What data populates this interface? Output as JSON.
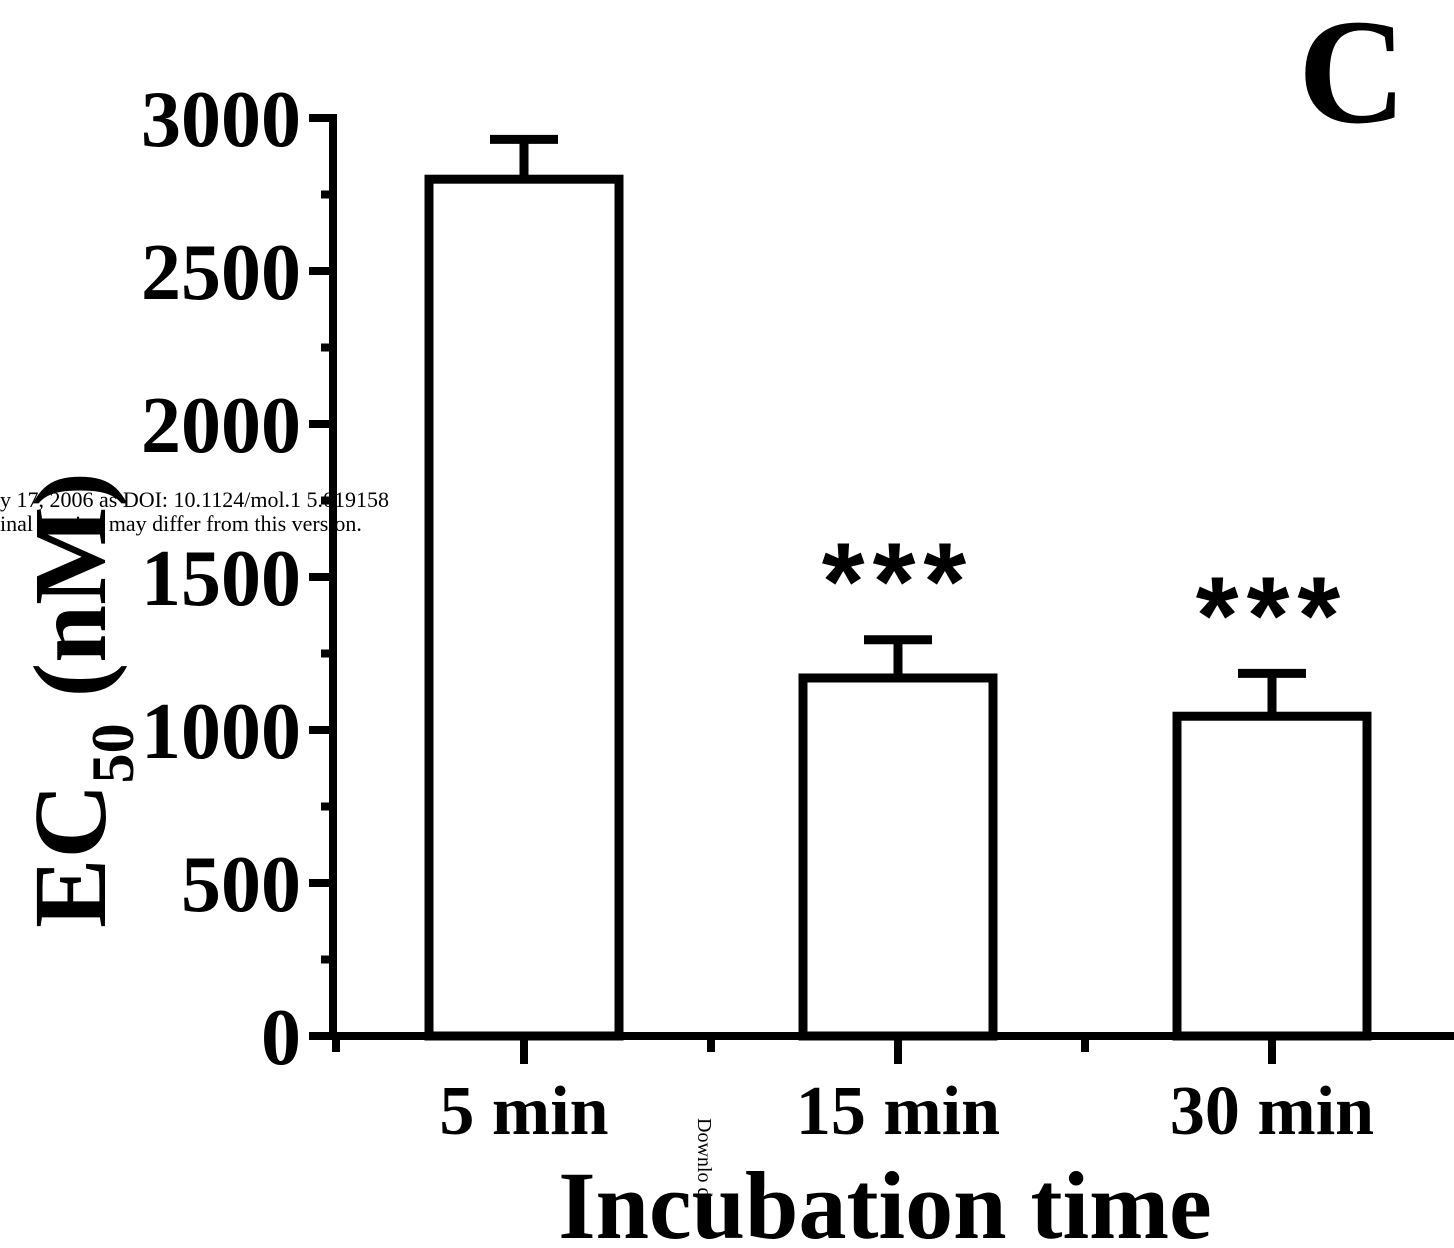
{
  "chart_data": {
    "type": "bar",
    "panel_label": "C",
    "categories": [
      "5 min",
      "15 min",
      "30 min"
    ],
    "values": [
      2800,
      1170,
      1045
    ],
    "errors": [
      130,
      125,
      140
    ],
    "significance": [
      "",
      "***",
      "***"
    ],
    "xlabel": "Incubation time",
    "ylabel_main": "EC",
    "ylabel_sub": "50",
    "ylabel_unit": " (nM)",
    "ylim": [
      0,
      3000
    ],
    "yticks": [
      0,
      500,
      1000,
      1500,
      2000,
      2500,
      3000
    ],
    "ytick_labels": [
      "0",
      "500",
      "1000",
      "1500",
      "2000",
      "2500",
      "3000"
    ],
    "bar_fill": "#ffffff",
    "bar_stroke": "#000000",
    "grid": false,
    "legend": "none"
  },
  "watermark": {
    "side_line1": "y 17, 2006 as DOI: 10.1124/mol.1 5.019158",
    "side_line2": "inal version may differ from this version.",
    "bottom_vertical": "Downlo d"
  }
}
